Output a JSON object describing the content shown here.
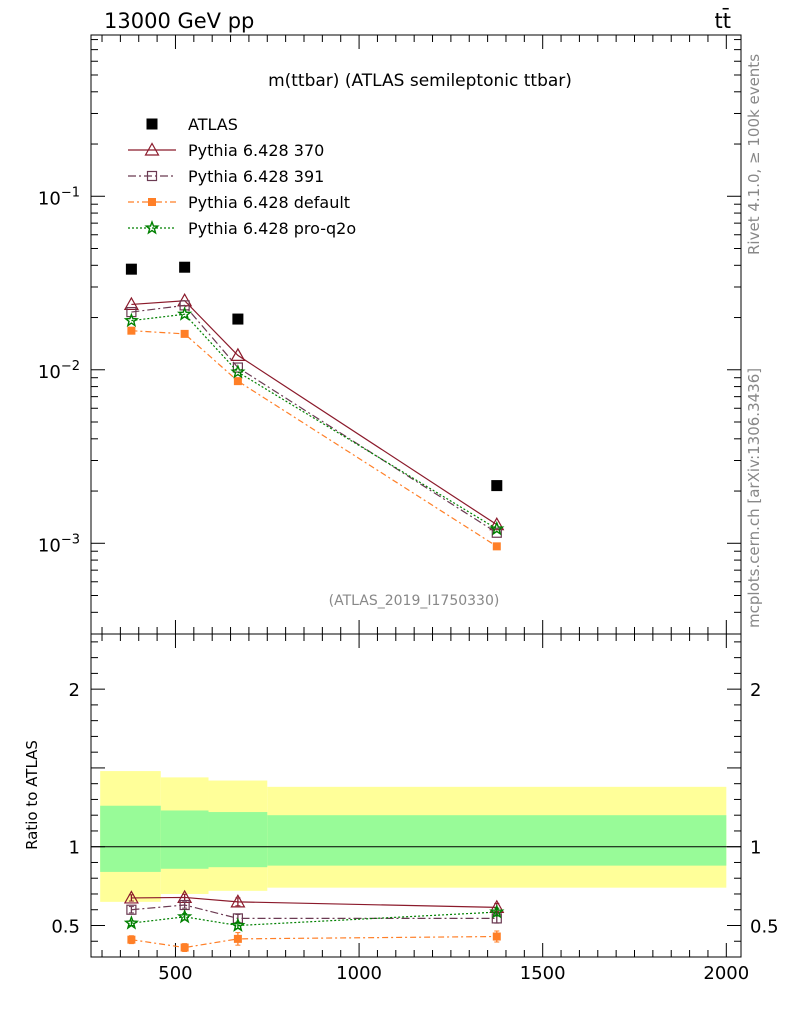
{
  "header": {
    "left": "13000 GeV pp",
    "right": "tt̄"
  },
  "side_labels": {
    "rivet": "Rivet 4.1.0, ≥ 100k events",
    "mcplots": "mcplots.cern.ch [arXiv:1306.3436]"
  },
  "chart_data": {
    "type": "scatter",
    "title": "m(ttbar) (ATLAS semileptonic ttbar)",
    "analysis_id": "(ATLAS_2019_I1750330)",
    "x_ticks": [
      "500",
      "1000",
      "1500",
      "2000"
    ],
    "xlim": [
      270,
      2040
    ],
    "main": {
      "yscale": "log",
      "ylim": [
        0.0003,
        0.85
      ],
      "y_ticks": [
        {
          "value": 0.1,
          "base": "10",
          "exp": "−1"
        },
        {
          "value": 0.01,
          "base": "10",
          "exp": "−2"
        },
        {
          "value": 0.001,
          "base": "10",
          "exp": "−3"
        }
      ]
    },
    "ratio": {
      "ylabel": "Ratio to ATLAS",
      "ylim": [
        0.3,
        2.35
      ],
      "y_ticks": [
        "0.5",
        "1",
        "2"
      ],
      "y_tick_values": [
        0.5,
        1,
        2
      ],
      "bands": [
        {
          "x0": 295,
          "x1": 460,
          "stat": [
            0.84,
            1.26
          ],
          "total": [
            0.65,
            1.48
          ]
        },
        {
          "x0": 460,
          "x1": 590,
          "stat": [
            0.86,
            1.23
          ],
          "total": [
            0.7,
            1.44
          ]
        },
        {
          "x0": 590,
          "x1": 750,
          "stat": [
            0.87,
            1.22
          ],
          "total": [
            0.72,
            1.42
          ]
        },
        {
          "x0": 750,
          "x1": 2000,
          "stat": [
            0.88,
            1.2
          ],
          "total": [
            0.74,
            1.38
          ]
        }
      ]
    },
    "x": [
      380,
      525,
      670,
      1375
    ],
    "series": [
      {
        "name": "ATLAS",
        "marker": "square-filled",
        "color": "#000000",
        "dash": "none",
        "values": [
          0.038,
          0.039,
          0.0196,
          0.00215
        ],
        "ratio": [
          1,
          1,
          1,
          1
        ],
        "ratio_err": [
          0,
          0,
          0,
          0
        ]
      },
      {
        "name": "Pythia 6.428 370",
        "marker": "triangle-open",
        "color": "#8b1a2b",
        "dash": "",
        "values": [
          0.0238,
          0.025,
          0.0121,
          0.00128
        ],
        "ratio": [
          0.675,
          0.678,
          0.65,
          0.615
        ],
        "ratio_err": [
          0.02,
          0.02,
          0.025,
          0.025
        ]
      },
      {
        "name": "Pythia 6.428 391",
        "marker": "square-open",
        "color": "#6b3a52",
        "dash": "8,3,2,3",
        "values": [
          0.0215,
          0.0235,
          0.0103,
          0.00115
        ],
        "ratio": [
          0.6,
          0.63,
          0.545,
          0.545
        ],
        "ratio_err": [
          0.02,
          0.02,
          0.025,
          0.03
        ]
      },
      {
        "name": "Pythia 6.428 default",
        "marker": "square-filled-small",
        "color": "#ff7f27",
        "dash": "6,3,2,3",
        "values": [
          0.0168,
          0.0161,
          0.0086,
          0.00096
        ],
        "ratio": [
          0.41,
          0.36,
          0.415,
          0.43
        ],
        "ratio_err": [
          0.025,
          0.025,
          0.04,
          0.035
        ]
      },
      {
        "name": "Pythia 6.428 pro-q2o",
        "marker": "star",
        "color": "#008000",
        "dash": "2,2",
        "values": [
          0.0192,
          0.0209,
          0.0097,
          0.00121
        ],
        "ratio": [
          0.515,
          0.555,
          0.5,
          0.585
        ],
        "ratio_err": [
          0.015,
          0.02,
          0.02,
          0.025
        ]
      }
    ]
  }
}
